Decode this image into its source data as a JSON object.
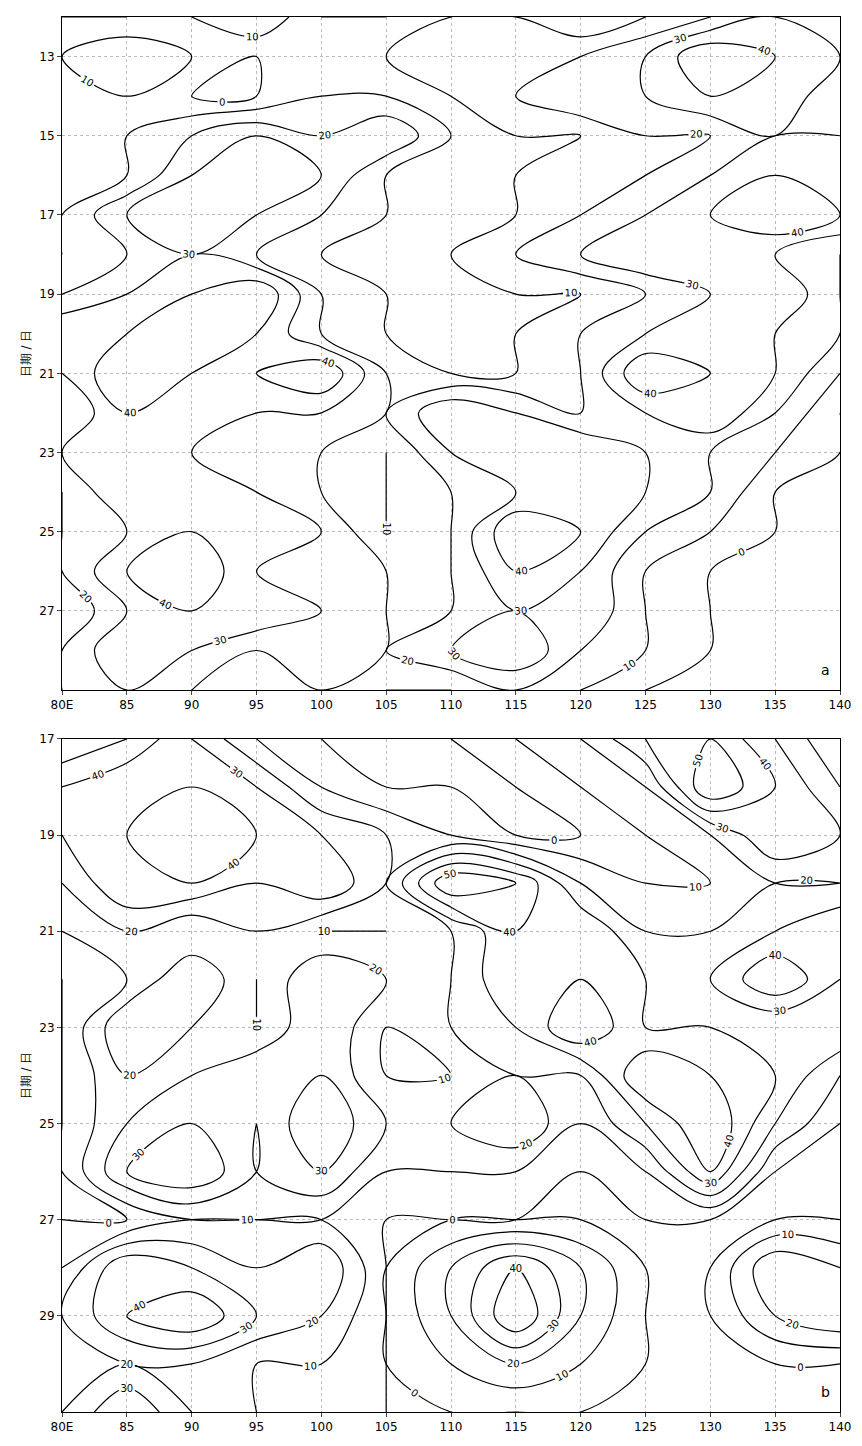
{
  "chart_data": [
    {
      "type": "contour",
      "label": "a",
      "ylabel": "日期 / 日",
      "grid": true,
      "levels": [
        0,
        10,
        20,
        30,
        40,
        50,
        60
      ],
      "xlim": [
        80,
        140
      ],
      "ylim": [
        12,
        29
      ],
      "xticks": [
        {
          "value": 80,
          "label": "80E"
        },
        85,
        90,
        95,
        100,
        105,
        110,
        115,
        120,
        125,
        130,
        135,
        140
      ],
      "yticks": [
        13,
        15,
        17,
        19,
        21,
        23,
        25,
        27
      ],
      "x": [
        80,
        85,
        90,
        95,
        100,
        105,
        110,
        115,
        120,
        125,
        130,
        135,
        140
      ],
      "y": [
        12,
        13,
        14,
        15,
        16,
        17,
        18,
        19,
        20,
        21,
        22,
        23,
        24,
        25,
        26,
        27,
        28,
        29
      ],
      "values": [
        [
          0,
          0,
          10,
          20,
          0,
          0,
          10,
          10,
          0,
          10,
          20,
          30,
          20
        ],
        [
          10,
          20,
          10,
          0,
          10,
          10,
          20,
          20,
          20,
          30,
          50,
          40,
          30
        ],
        [
          10,
          10,
          0,
          0,
          10,
          10,
          10,
          20,
          30,
          30,
          40,
          40,
          20
        ],
        [
          0,
          10,
          20,
          30,
          20,
          30,
          10,
          10,
          10,
          20,
          20,
          30,
          30
        ],
        [
          10,
          10,
          30,
          40,
          30,
          10,
          10,
          10,
          20,
          20,
          30,
          40,
          40
        ],
        [
          10,
          30,
          40,
          30,
          20,
          10,
          10,
          10,
          20,
          30,
          40,
          50,
          40
        ],
        [
          10,
          20,
          30,
          20,
          10,
          10,
          10,
          20,
          30,
          40,
          40,
          30,
          20
        ],
        [
          20,
          30,
          40,
          50,
          20,
          10,
          10,
          10,
          10,
          20,
          30,
          40,
          20
        ],
        [
          40,
          40,
          50,
          40,
          20,
          10,
          10,
          10,
          20,
          30,
          40,
          30,
          20
        ],
        [
          30,
          50,
          40,
          40,
          50,
          20,
          10,
          10,
          20,
          50,
          40,
          30,
          10
        ],
        [
          20,
          40,
          40,
          30,
          30,
          20,
          40,
          30,
          20,
          30,
          40,
          20,
          0
        ],
        [
          30,
          40,
          30,
          30,
          20,
          10,
          30,
          40,
          40,
          30,
          20,
          10,
          0
        ],
        [
          20,
          40,
          40,
          30,
          20,
          10,
          20,
          30,
          40,
          30,
          20,
          0,
          0
        ],
        [
          20,
          30,
          40,
          40,
          30,
          10,
          20,
          50,
          40,
          20,
          10,
          0,
          0
        ],
        [
          20,
          40,
          50,
          30,
          30,
          20,
          20,
          40,
          30,
          10,
          0,
          0,
          0
        ],
        [
          10,
          30,
          40,
          40,
          30,
          20,
          20,
          30,
          30,
          10,
          0,
          0,
          0
        ],
        [
          20,
          40,
          30,
          20,
          30,
          20,
          30,
          40,
          20,
          10,
          0,
          0,
          0
        ],
        [
          20,
          30,
          20,
          20,
          20,
          10,
          10,
          20,
          10,
          0,
          0,
          0,
          0
        ]
      ]
    },
    {
      "type": "contour",
      "label": "b",
      "ylabel": "日期 / 日",
      "grid": true,
      "levels": [
        0,
        10,
        20,
        30,
        40,
        50,
        60
      ],
      "xlim": [
        80,
        140
      ],
      "ylim": [
        17,
        31
      ],
      "xticks": [
        {
          "value": 80,
          "label": "80E"
        },
        85,
        90,
        95,
        100,
        105,
        110,
        115,
        120,
        125,
        130,
        135,
        140
      ],
      "yticks": [
        17,
        19,
        21,
        23,
        25,
        27,
        29
      ],
      "x": [
        80,
        85,
        90,
        95,
        100,
        105,
        110,
        115,
        120,
        125,
        130,
        135,
        140
      ],
      "y": [
        17,
        18,
        19,
        20,
        21,
        22,
        23,
        24,
        25,
        26,
        27,
        28,
        29,
        30,
        31
      ],
      "values": [
        [
          60,
          50,
          30,
          10,
          0,
          0,
          0,
          10,
          20,
          40,
          50,
          30,
          10
        ],
        [
          40,
          30,
          40,
          30,
          10,
          0,
          0,
          0,
          10,
          20,
          60,
          40,
          20
        ],
        [
          30,
          40,
          50,
          40,
          30,
          20,
          10,
          0,
          0,
          10,
          20,
          40,
          30
        ],
        [
          20,
          40,
          40,
          30,
          40,
          20,
          60,
          50,
          20,
          10,
          10,
          20,
          20
        ],
        [
          10,
          20,
          10,
          20,
          10,
          10,
          20,
          40,
          40,
          20,
          20,
          30,
          40
        ],
        [
          0,
          10,
          30,
          10,
          30,
          20,
          20,
          40,
          40,
          30,
          30,
          50,
          30
        ],
        [
          0,
          30,
          20,
          10,
          30,
          10,
          20,
          30,
          50,
          30,
          30,
          20,
          30
        ],
        [
          0,
          20,
          20,
          30,
          30,
          10,
          10,
          20,
          20,
          50,
          40,
          30,
          10
        ],
        [
          0,
          20,
          30,
          20,
          40,
          20,
          20,
          30,
          10,
          30,
          50,
          20,
          0
        ],
        [
          0,
          30,
          40,
          20,
          30,
          10,
          10,
          10,
          0,
          10,
          40,
          0,
          0
        ],
        [
          0,
          0,
          10,
          10,
          10,
          0,
          0,
          0,
          0,
          0,
          0,
          0,
          0
        ],
        [
          10,
          40,
          30,
          20,
          30,
          0,
          20,
          40,
          20,
          0,
          0,
          30,
          20
        ],
        [
          20,
          40,
          50,
          30,
          20,
          0,
          20,
          50,
          20,
          0,
          0,
          20,
          30
        ],
        [
          10,
          20,
          20,
          10,
          10,
          0,
          10,
          20,
          10,
          0,
          0,
          0,
          0
        ],
        [
          20,
          40,
          20,
          10,
          10,
          0,
          0,
          0,
          0,
          0,
          0,
          0,
          0
        ]
      ]
    }
  ]
}
